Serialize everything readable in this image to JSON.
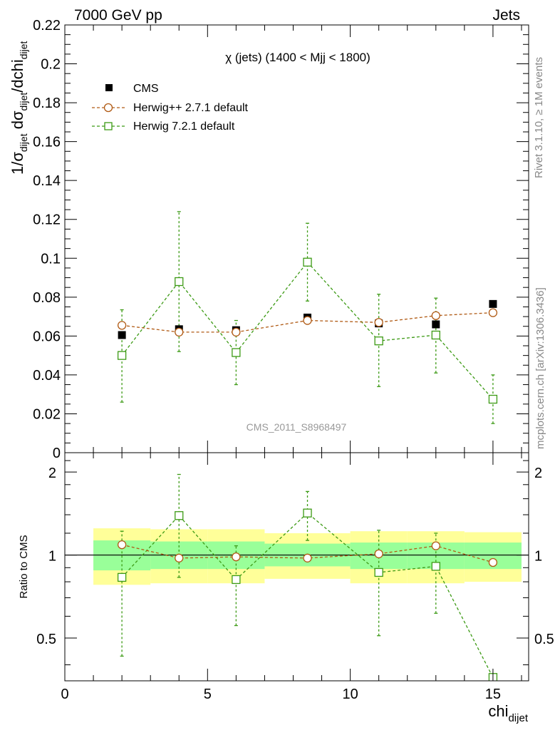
{
  "header": {
    "left": "7000 GeV pp",
    "right": "Jets"
  },
  "side_labels": {
    "rivet": "Rivet 3.1.10, ≥ 1M events",
    "mcplots": "mcplots.cern.ch [arXiv:1306.3436]"
  },
  "watermark": "CMS_2011_S8968497",
  "colors": {
    "cms": "#000000",
    "herwig_pp": "#b05a14",
    "herwig7": "#3c9a14",
    "band_inner": "#99ff99",
    "band_outer": "#ffff99"
  },
  "chart_data": [
    {
      "type": "scatter",
      "title": "χ (jets) (1400 < Mjj < 1800)",
      "ylabel_parts": {
        "prefix": "1/σ",
        "sub1": "dijet",
        "mid": " dσ",
        "sub2": "dijet",
        "end": "/dchi",
        "sub3": "dijet"
      },
      "xlabel": "chi",
      "xlabel_sub": "dijet",
      "xlim": [
        0,
        16.25
      ],
      "ylim": [
        0,
        0.22
      ],
      "yticks": [
        "0",
        "0.02",
        "0.04",
        "0.06",
        "0.08",
        "0.1",
        "0.12",
        "0.14",
        "0.16",
        "0.18",
        "0.2",
        "0.22"
      ],
      "ytick_values": [
        0,
        0.02,
        0.04,
        0.06,
        0.08,
        0.1,
        0.12,
        0.14,
        0.16,
        0.18,
        0.2,
        0.22
      ],
      "legend_position": "top-left",
      "series": [
        {
          "name": "CMS",
          "marker": "filled-square",
          "x": [
            2,
            4,
            6,
            8.5,
            11,
            13,
            15
          ],
          "y": [
            0.0605,
            0.0635,
            0.063,
            0.0695,
            0.0665,
            0.066,
            0.0765
          ]
        },
        {
          "name": "Herwig++ 2.7.1 default",
          "marker": "open-circle",
          "x": [
            2,
            4,
            6,
            8.5,
            11,
            13,
            15
          ],
          "y": [
            0.0655,
            0.062,
            0.062,
            0.068,
            0.067,
            0.0705,
            0.072
          ],
          "yerr": [
            0.0015,
            0.0015,
            0.0015,
            0.0015,
            0.0015,
            0.0015,
            0.0015
          ]
        },
        {
          "name": "Herwig 7.2.1 default",
          "marker": "open-square",
          "x": [
            2,
            4,
            6,
            8.5,
            11,
            13,
            15
          ],
          "y": [
            0.05,
            0.088,
            0.0515,
            0.098,
            0.0575,
            0.0605,
            0.0275
          ],
          "ylow": [
            0.026,
            0.052,
            0.035,
            0.078,
            0.034,
            0.041,
            0.015
          ],
          "yhigh": [
            0.0735,
            0.124,
            0.068,
            0.118,
            0.0815,
            0.0795,
            0.04
          ]
        }
      ]
    },
    {
      "type": "scatter",
      "title": "",
      "ylabel": "Ratio to CMS",
      "xlabel": "chi",
      "xticks": [
        "0",
        "5",
        "10",
        "15"
      ],
      "xtick_values": [
        0,
        5,
        10,
        15
      ],
      "xlim": [
        0,
        16.25
      ],
      "ylim": [
        0.35,
        2.35
      ],
      "yscale": "log",
      "yticks": [
        "0.5",
        "1",
        "2"
      ],
      "ytick_values": [
        0.5,
        1,
        2
      ],
      "reference_line": 1,
      "bands": [
        {
          "x1": 1,
          "x2": 3,
          "inner": [
            0.88,
            1.13
          ],
          "outer": [
            0.78,
            1.25
          ]
        },
        {
          "x1": 3,
          "x2": 5,
          "inner": [
            0.89,
            1.12
          ],
          "outer": [
            0.79,
            1.24
          ]
        },
        {
          "x1": 5,
          "x2": 7,
          "inner": [
            0.89,
            1.12
          ],
          "outer": [
            0.79,
            1.24
          ]
        },
        {
          "x1": 7,
          "x2": 10,
          "inner": [
            0.91,
            1.1
          ],
          "outer": [
            0.82,
            1.2
          ]
        },
        {
          "x1": 10,
          "x2": 12,
          "inner": [
            0.89,
            1.11
          ],
          "outer": [
            0.79,
            1.22
          ]
        },
        {
          "x1": 12,
          "x2": 14,
          "inner": [
            0.89,
            1.11
          ],
          "outer": [
            0.79,
            1.22
          ]
        },
        {
          "x1": 14,
          "x2": 16,
          "inner": [
            0.89,
            1.11
          ],
          "outer": [
            0.8,
            1.21
          ]
        }
      ],
      "series": [
        {
          "name": "Herwig++ 2.7.1 default",
          "marker": "open-circle",
          "x": [
            2,
            4,
            6,
            8.5,
            11,
            13,
            15
          ],
          "y": [
            1.09,
            0.975,
            0.985,
            0.975,
            1.01,
            1.08,
            0.94
          ]
        },
        {
          "name": "Herwig 7.2.1 default",
          "marker": "open-square",
          "x": [
            2,
            4,
            6,
            8.5,
            11,
            13,
            15
          ],
          "y": [
            0.83,
            1.39,
            0.815,
            1.42,
            0.865,
            0.91,
            0.36
          ],
          "ylow": [
            0.43,
            0.83,
            0.555,
            1.13,
            0.51,
            0.615,
            null
          ],
          "yhigh": [
            1.22,
            1.96,
            1.08,
            1.7,
            1.23,
            1.2,
            null
          ]
        }
      ]
    }
  ]
}
